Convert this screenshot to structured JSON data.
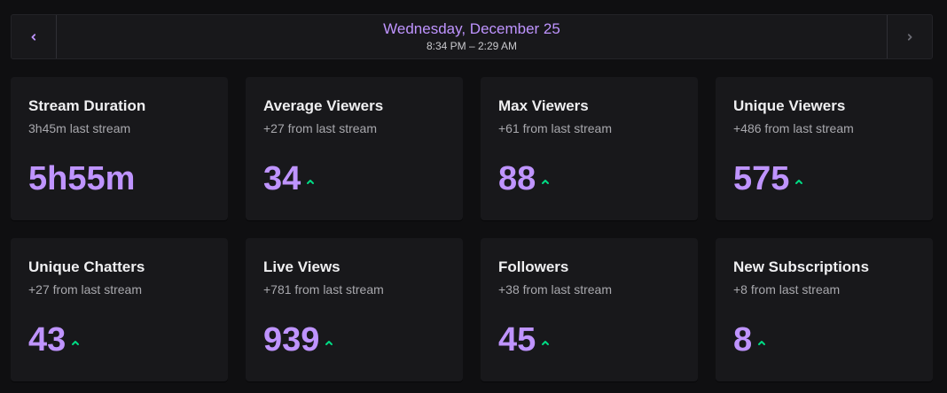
{
  "header": {
    "date": "Wednesday, December 25",
    "time_range": "8:34 PM – 2:29 AM",
    "prev_icon": "chevron-left-icon",
    "next_icon": "chevron-right-icon"
  },
  "colors": {
    "accent": "#bf94ff",
    "trend_up": "#00db84",
    "card_bg": "#18181b",
    "page_bg": "#0f0f11"
  },
  "cards": [
    {
      "title": "Stream Duration",
      "subtitle": "3h45m last stream",
      "value": "5h55m",
      "trend": "none"
    },
    {
      "title": "Average Viewers",
      "subtitle": "+27 from last stream",
      "value": "34",
      "trend": "up"
    },
    {
      "title": "Max Viewers",
      "subtitle": "+61 from last stream",
      "value": "88",
      "trend": "up"
    },
    {
      "title": "Unique Viewers",
      "subtitle": "+486 from last stream",
      "value": "575",
      "trend": "up"
    },
    {
      "title": "Unique Chatters",
      "subtitle": "+27 from last stream",
      "value": "43",
      "trend": "up"
    },
    {
      "title": "Live Views",
      "subtitle": "+781 from last stream",
      "value": "939",
      "trend": "up"
    },
    {
      "title": "Followers",
      "subtitle": "+38 from last stream",
      "value": "45",
      "trend": "up"
    },
    {
      "title": "New Subscriptions",
      "subtitle": "+8 from last stream",
      "value": "8",
      "trend": "up"
    }
  ]
}
